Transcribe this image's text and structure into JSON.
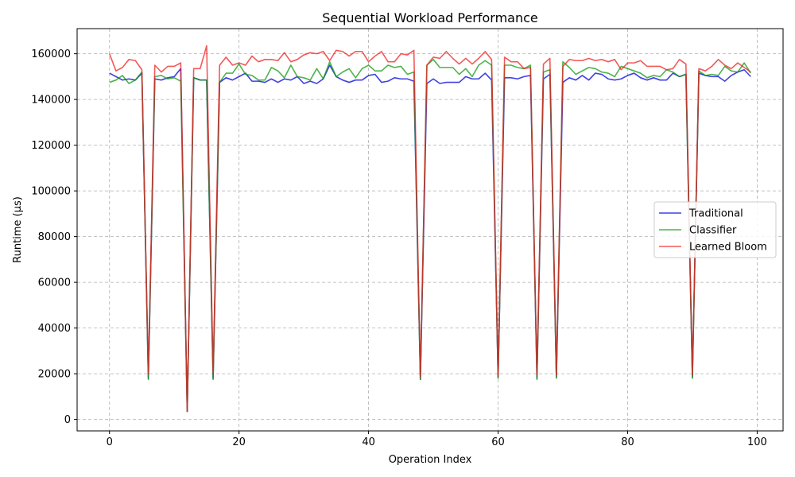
{
  "chart_data": {
    "type": "line",
    "title": "Sequential Workload Performance",
    "xlabel": "Operation Index",
    "ylabel": "Runtime (µs)",
    "xlim": [
      -5,
      104
    ],
    "ylim": [
      -5000,
      171000
    ],
    "xticks": [
      0,
      20,
      40,
      60,
      80,
      100
    ],
    "yticks": [
      0,
      20000,
      40000,
      60000,
      80000,
      100000,
      120000,
      140000,
      160000
    ],
    "grid": true,
    "legend_position": "center-right",
    "series": [
      {
        "name": "Traditional",
        "color": "#0000dd",
        "values": [
          151500,
          150000,
          148500,
          149000,
          148500,
          151500,
          18000,
          149000,
          148500,
          149500,
          150000,
          153500,
          3500,
          149500,
          148500,
          148500,
          18000,
          147500,
          149500,
          148500,
          150000,
          151500,
          148000,
          148000,
          147500,
          149000,
          147500,
          149000,
          148500,
          150000,
          147000,
          148000,
          147000,
          149000,
          155000,
          150000,
          148500,
          147500,
          148500,
          148500,
          150500,
          151000,
          147500,
          148000,
          149500,
          149000,
          149000,
          148000,
          17500,
          147000,
          149000,
          147000,
          147500,
          147500,
          147500,
          150000,
          149000,
          149000,
          151500,
          148500,
          18500,
          149500,
          149500,
          149000,
          150000,
          150500,
          18000,
          149000,
          151000,
          18500,
          147500,
          149500,
          148500,
          150500,
          148500,
          151500,
          151000,
          149000,
          148500,
          149000,
          150500,
          151500,
          149500,
          148500,
          149500,
          148500,
          148500,
          151500,
          150000,
          151000,
          18500,
          151500,
          150500,
          150000,
          150000,
          148000,
          150500,
          152000,
          153000,
          150000
        ]
      },
      {
        "name": "Classifier",
        "color": "#119911",
        "values": [
          147500,
          148500,
          150500,
          147000,
          148500,
          152000,
          17500,
          150000,
          150500,
          149000,
          149500,
          148000,
          3500,
          149500,
          148500,
          148500,
          17500,
          147500,
          151500,
          151500,
          155500,
          151000,
          150500,
          148500,
          148500,
          154000,
          152500,
          149500,
          155000,
          150000,
          149500,
          148500,
          153500,
          149000,
          156500,
          150000,
          152000,
          153500,
          149500,
          153500,
          155000,
          152500,
          152500,
          155000,
          154000,
          154500,
          151000,
          152000,
          17500,
          155000,
          157500,
          154000,
          154000,
          154000,
          151000,
          153500,
          150000,
          155000,
          157000,
          155000,
          18000,
          155000,
          155000,
          154000,
          153500,
          155000,
          17500,
          152000,
          153000,
          18000,
          156500,
          154000,
          151000,
          152500,
          154000,
          153500,
          152000,
          151500,
          150000,
          154500,
          153500,
          152500,
          151500,
          149500,
          150500,
          150000,
          153000,
          152000,
          150000,
          151000,
          18000,
          152500,
          150500,
          151000,
          150500,
          154500,
          152500,
          152000,
          156000,
          151500
        ]
      },
      {
        "name": "Learned Bloom",
        "color": "#ee2222",
        "values": [
          160000,
          152500,
          154000,
          157500,
          157000,
          153000,
          20000,
          155000,
          152000,
          154500,
          154500,
          156000,
          3500,
          153500,
          153500,
          163500,
          20000,
          155000,
          158500,
          155000,
          156000,
          155000,
          159000,
          156500,
          157500,
          157500,
          157000,
          160500,
          156500,
          157500,
          159500,
          160500,
          160000,
          161000,
          157000,
          161500,
          161000,
          159000,
          161000,
          161000,
          156500,
          159000,
          161000,
          156500,
          156500,
          160000,
          159500,
          161500,
          18500,
          155000,
          158500,
          158000,
          161000,
          158000,
          155500,
          158000,
          155500,
          158000,
          161000,
          157500,
          19000,
          158500,
          156500,
          156500,
          153500,
          154000,
          19500,
          155500,
          158000,
          19500,
          154500,
          157500,
          157000,
          157000,
          158000,
          157000,
          157500,
          156500,
          157500,
          153000,
          156000,
          156000,
          157000,
          154500,
          154500,
          154500,
          153000,
          153500,
          157500,
          155500,
          19500,
          153500,
          152500,
          154500,
          157500,
          155000,
          153500,
          156000,
          154000,
          152000
        ]
      }
    ]
  }
}
